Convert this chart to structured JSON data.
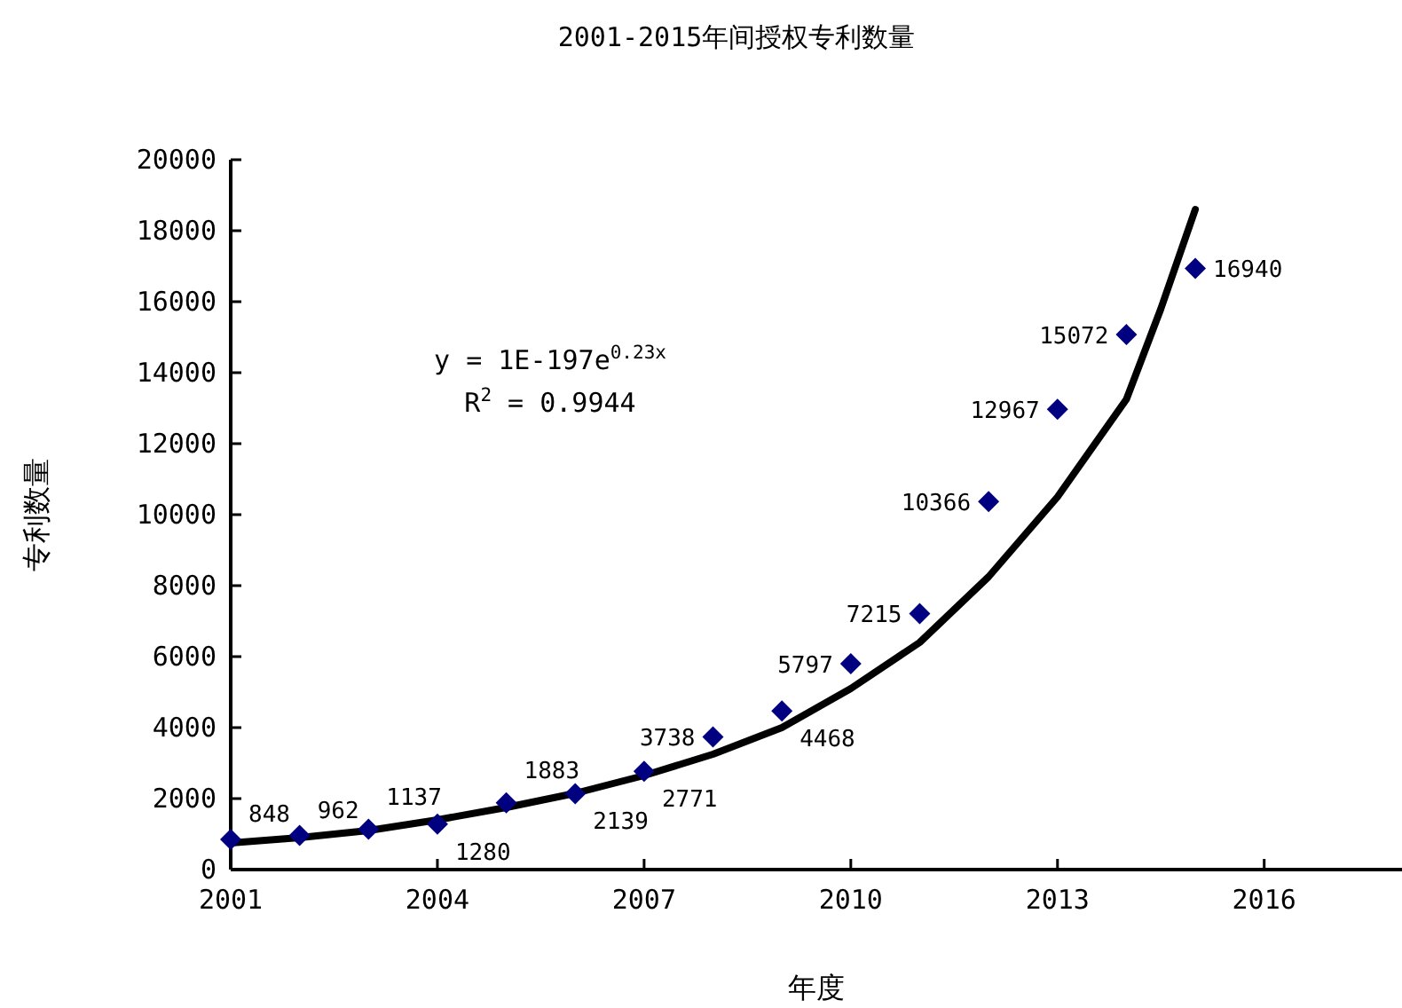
{
  "chart_data": {
    "type": "scatter",
    "title": "2001-2015年间授权专利数量",
    "xlabel": "年度",
    "ylabel": "专利数量",
    "x": [
      2001,
      2002,
      2003,
      2004,
      2005,
      2006,
      2007,
      2008,
      2009,
      2010,
      2011,
      2012,
      2013,
      2014,
      2015
    ],
    "series": [
      {
        "marker": "diamond",
        "color": "#000080",
        "values": [
          848,
          962,
          1137,
          1280,
          1883,
          2139,
          2771,
          3738,
          4468,
          5797,
          7215,
          10366,
          12967,
          15072,
          16940
        ],
        "value_labels": [
          "848",
          "962",
          "1137",
          "1280",
          "1883",
          "2139",
          "2771",
          "3738",
          "4468",
          "5797",
          "7215",
          "10366",
          "12967",
          "15072",
          "16940"
        ]
      },
      {
        "type": "line",
        "color": "#000000",
        "marker": "none",
        "x": [
          2001,
          2002,
          2003,
          2004,
          2005,
          2006,
          2007,
          2008,
          2009,
          2010,
          2011,
          2012,
          2013,
          2014,
          2014.5,
          2015
        ],
        "values": [
          750,
          900,
          1100,
          1400,
          1750,
          2150,
          2650,
          3250,
          4000,
          5100,
          6400,
          8250,
          10500,
          13250,
          15800,
          18600
        ]
      }
    ],
    "xlim": [
      2001,
      2018
    ],
    "xticks": [
      2001,
      2004,
      2007,
      2010,
      2013,
      2016
    ],
    "ylim": [
      0,
      20000
    ],
    "yticks": [
      0,
      2000,
      4000,
      6000,
      8000,
      10000,
      12000,
      14000,
      16000,
      18000,
      20000
    ],
    "grid": false,
    "annotations": [
      "y = 1E-197e$^{0.23x}$",
      "R$^{2}$ = 0.9944"
    ]
  }
}
